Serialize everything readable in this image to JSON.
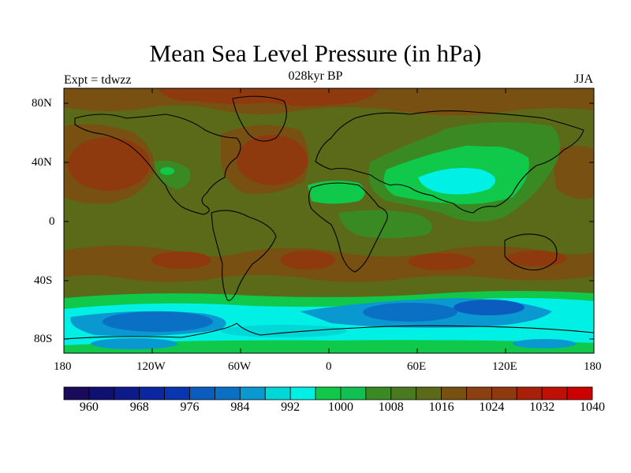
{
  "title": "Mean Sea Level Pressure (in hPa)",
  "left_label": "Expt = tdwzz",
  "center_label": "028kyr BP",
  "right_label": "JJA",
  "lat_ticks": [
    "80N",
    "40N",
    "0",
    "40S",
    "80S"
  ],
  "lon_ticks": [
    "180",
    "120W",
    "60W",
    "0",
    "60E",
    "120E",
    "180"
  ],
  "colorbar": {
    "labels": [
      "960",
      "968",
      "976",
      "984",
      "992",
      "1000",
      "1008",
      "1016",
      "1024",
      "1032",
      "1040"
    ],
    "colors": [
      "#1a0a5c",
      "#100f72",
      "#0c1a8c",
      "#0a26a0",
      "#0a35b0",
      "#0a5cbe",
      "#0a70c4",
      "#0a98d0",
      "#00d8d8",
      "#00f0e6",
      "#10c84a",
      "#10c050",
      "#3a8a24",
      "#4a7a20",
      "#5a6a18",
      "#785012",
      "#8a4010",
      "#8f3a0e",
      "#a82008",
      "#c01006",
      "#cc0000"
    ]
  },
  "colors": {
    "base_olive": "#5a6a18",
    "land_outline": "#000000"
  }
}
